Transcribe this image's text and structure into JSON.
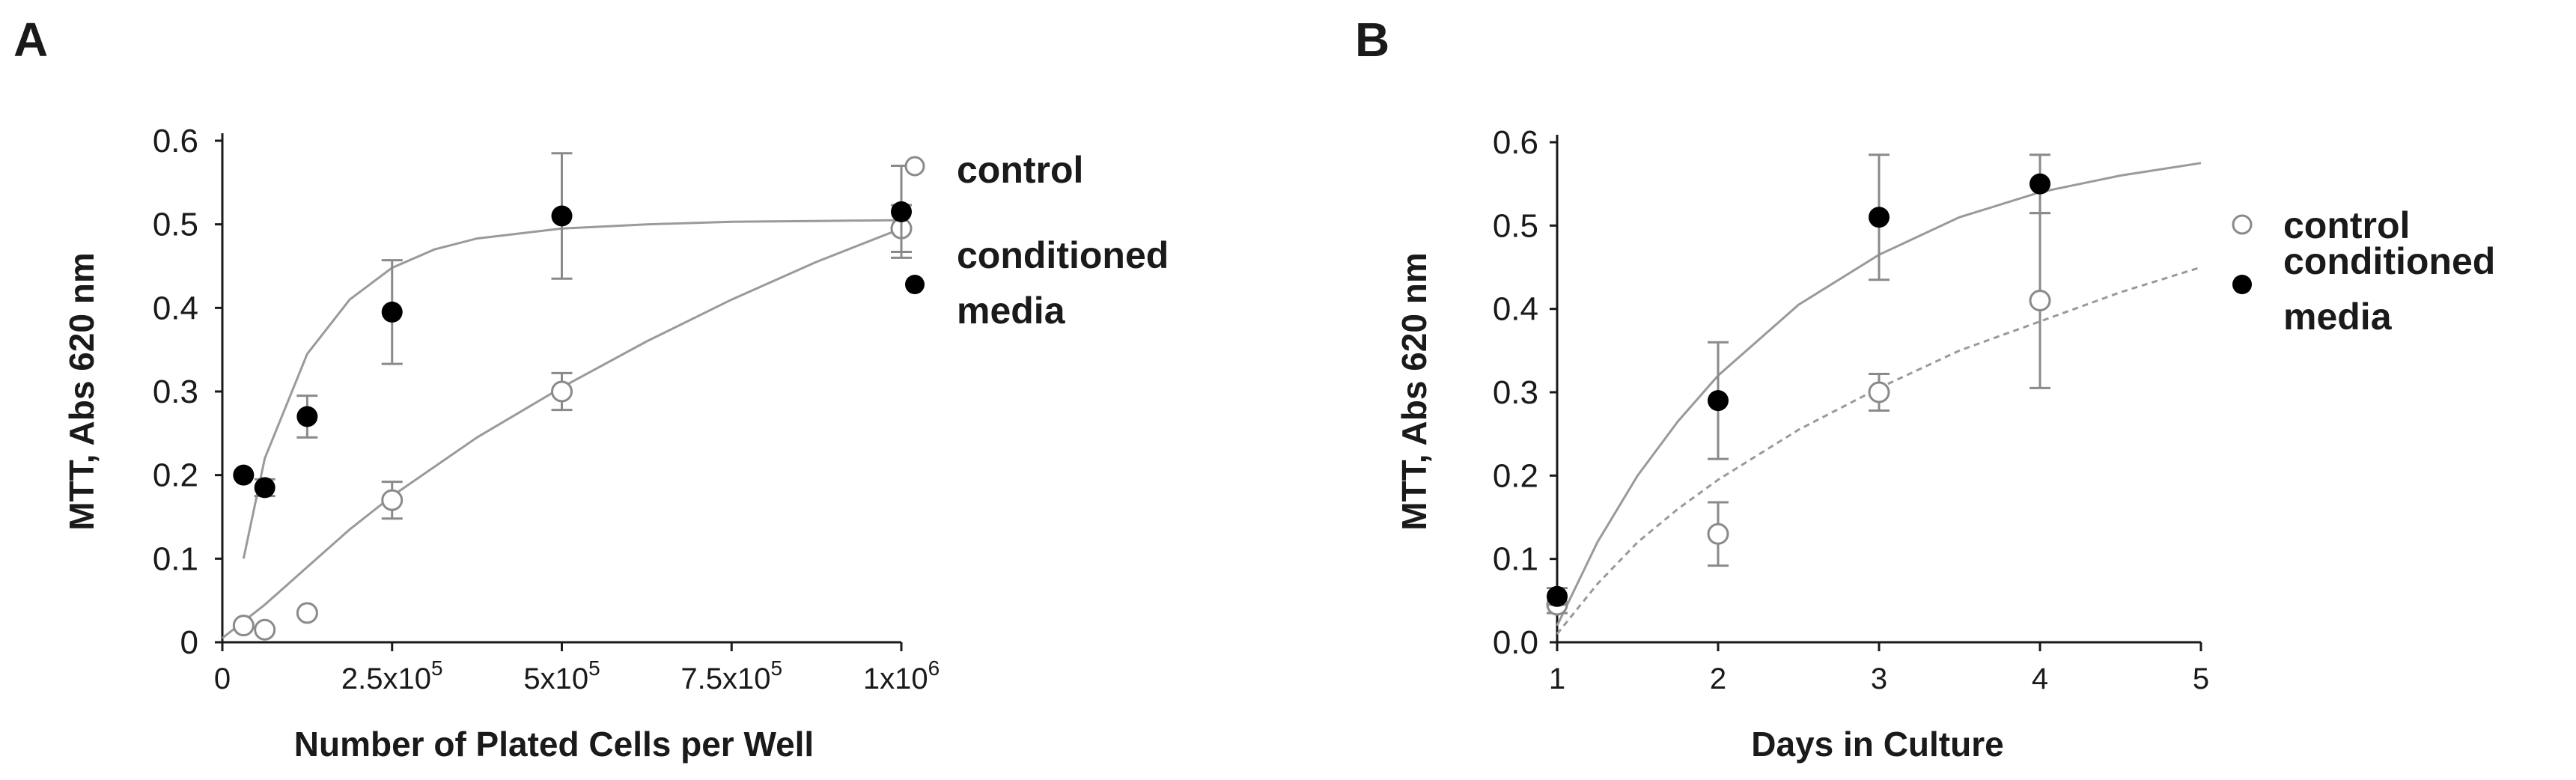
{
  "colors": {
    "axis": "#1a1a1a",
    "curve": "#9a9a9a",
    "errorbar": "#8a8a8a",
    "filled_marker": "#000000",
    "open_marker_stroke": "#8a8a8a",
    "text": "#1a1a1a"
  },
  "chart_data": [
    {
      "panel_label": "A",
      "type": "scatter",
      "title": "",
      "xlabel": "Number of Plated Cells per Well",
      "ylabel": "MTT, Abs 620 nm",
      "xlim": [
        0,
        1000000
      ],
      "ylim": [
        0,
        0.6
      ],
      "xticks": [
        {
          "value": 0,
          "label": "0"
        },
        {
          "value": 250000,
          "label": "2.5x10",
          "sup": "5"
        },
        {
          "value": 500000,
          "label": "5x10",
          "sup": "5"
        },
        {
          "value": 750000,
          "label": "7.5x10",
          "sup": "5"
        },
        {
          "value": 1000000,
          "label": "1x10",
          "sup": "6"
        }
      ],
      "yticks": [
        {
          "value": 0,
          "label": "0"
        },
        {
          "value": 0.1,
          "label": "0.1"
        },
        {
          "value": 0.2,
          "label": "0.2"
        },
        {
          "value": 0.3,
          "label": "0.3"
        },
        {
          "value": 0.4,
          "label": "0.4"
        },
        {
          "value": 0.5,
          "label": "0.5"
        },
        {
          "value": 0.6,
          "label": "0.6"
        }
      ],
      "legend": {
        "placement": "top-right",
        "entries": [
          {
            "series": "control",
            "lines": [
              "control"
            ]
          },
          {
            "series": "conditioned_media",
            "lines": [
              "conditioned",
              " media"
            ]
          }
        ]
      },
      "series": [
        {
          "name": "control",
          "marker": "open",
          "x": [
            31250,
            62500,
            125000,
            250000,
            500000,
            1000000
          ],
          "y": [
            0.02,
            0.015,
            0.035,
            0.17,
            0.3,
            0.495
          ],
          "err": [
            0,
            0,
            0,
            0.022,
            0.022,
            0.028
          ]
        },
        {
          "name": "conditioned_media",
          "marker": "filled",
          "x": [
            31250,
            62500,
            125000,
            250000,
            500000,
            1000000
          ],
          "y": [
            0.2,
            0.185,
            0.27,
            0.395,
            0.51,
            0.515
          ],
          "err": [
            0,
            0.01,
            0.025,
            0.062,
            0.075,
            0.055
          ]
        }
      ],
      "fits": [
        {
          "series": "conditioned_media",
          "style": "solid",
          "x": [
            31250,
            62500,
            125000,
            187500,
            250000,
            312500,
            375000,
            500000,
            625000,
            750000,
            875000,
            1000000
          ],
          "y": [
            0.1,
            0.22,
            0.345,
            0.41,
            0.448,
            0.47,
            0.483,
            0.495,
            0.5,
            0.503,
            0.504,
            0.505
          ]
        },
        {
          "series": "control",
          "style": "solid",
          "x": [
            0,
            62500,
            125000,
            187500,
            250000,
            375000,
            500000,
            625000,
            750000,
            875000,
            1000000
          ],
          "y": [
            0.005,
            0.045,
            0.09,
            0.135,
            0.175,
            0.245,
            0.305,
            0.36,
            0.41,
            0.455,
            0.495
          ]
        }
      ]
    },
    {
      "panel_label": "B",
      "type": "scatter",
      "title": "",
      "xlabel": "Days in Culture",
      "ylabel": "MTT, Abs 620 nm",
      "xlim": [
        1,
        5
      ],
      "ylim": [
        0,
        0.6
      ],
      "xticks": [
        {
          "value": 1,
          "label": "1"
        },
        {
          "value": 2,
          "label": "2"
        },
        {
          "value": 3,
          "label": "3"
        },
        {
          "value": 4,
          "label": "4"
        },
        {
          "value": 5,
          "label": "5"
        }
      ],
      "yticks": [
        {
          "value": 0,
          "label": "0.0"
        },
        {
          "value": 0.1,
          "label": "0.1"
        },
        {
          "value": 0.2,
          "label": "0.2"
        },
        {
          "value": 0.3,
          "label": "0.3"
        },
        {
          "value": 0.4,
          "label": "0.4"
        },
        {
          "value": 0.5,
          "label": "0.5"
        },
        {
          "value": 0.6,
          "label": "0.6"
        }
      ],
      "legend": {
        "placement": "top-right",
        "entries": [
          {
            "series": "control",
            "lines": [
              "control"
            ]
          },
          {
            "series": "conditioned_media",
            "lines": [
              "conditioned",
              "media"
            ]
          }
        ]
      },
      "series": [
        {
          "name": "control",
          "marker": "open",
          "x": [
            1,
            2,
            3,
            4
          ],
          "y": [
            0.045,
            0.13,
            0.3,
            0.41
          ],
          "err": [
            0.01,
            0.038,
            0.022,
            0.105
          ]
        },
        {
          "name": "conditioned_media",
          "marker": "filled",
          "x": [
            1,
            2,
            3,
            4
          ],
          "y": [
            0.055,
            0.29,
            0.51,
            0.55
          ],
          "err": [
            0.01,
            0.07,
            0.075,
            0.035
          ]
        }
      ],
      "fits": [
        {
          "series": "conditioned_media",
          "style": "solid",
          "x": [
            1,
            1.25,
            1.5,
            1.75,
            2,
            2.5,
            3,
            3.5,
            4,
            4.5,
            5
          ],
          "y": [
            0.02,
            0.12,
            0.2,
            0.265,
            0.32,
            0.405,
            0.465,
            0.51,
            0.54,
            0.56,
            0.575
          ]
        },
        {
          "series": "control",
          "style": "dashed",
          "x": [
            1,
            1.25,
            1.5,
            1.75,
            2,
            2.5,
            3,
            3.5,
            4,
            4.5,
            5
          ],
          "y": [
            0.01,
            0.07,
            0.12,
            0.16,
            0.195,
            0.255,
            0.305,
            0.35,
            0.385,
            0.42,
            0.45
          ]
        }
      ]
    }
  ]
}
